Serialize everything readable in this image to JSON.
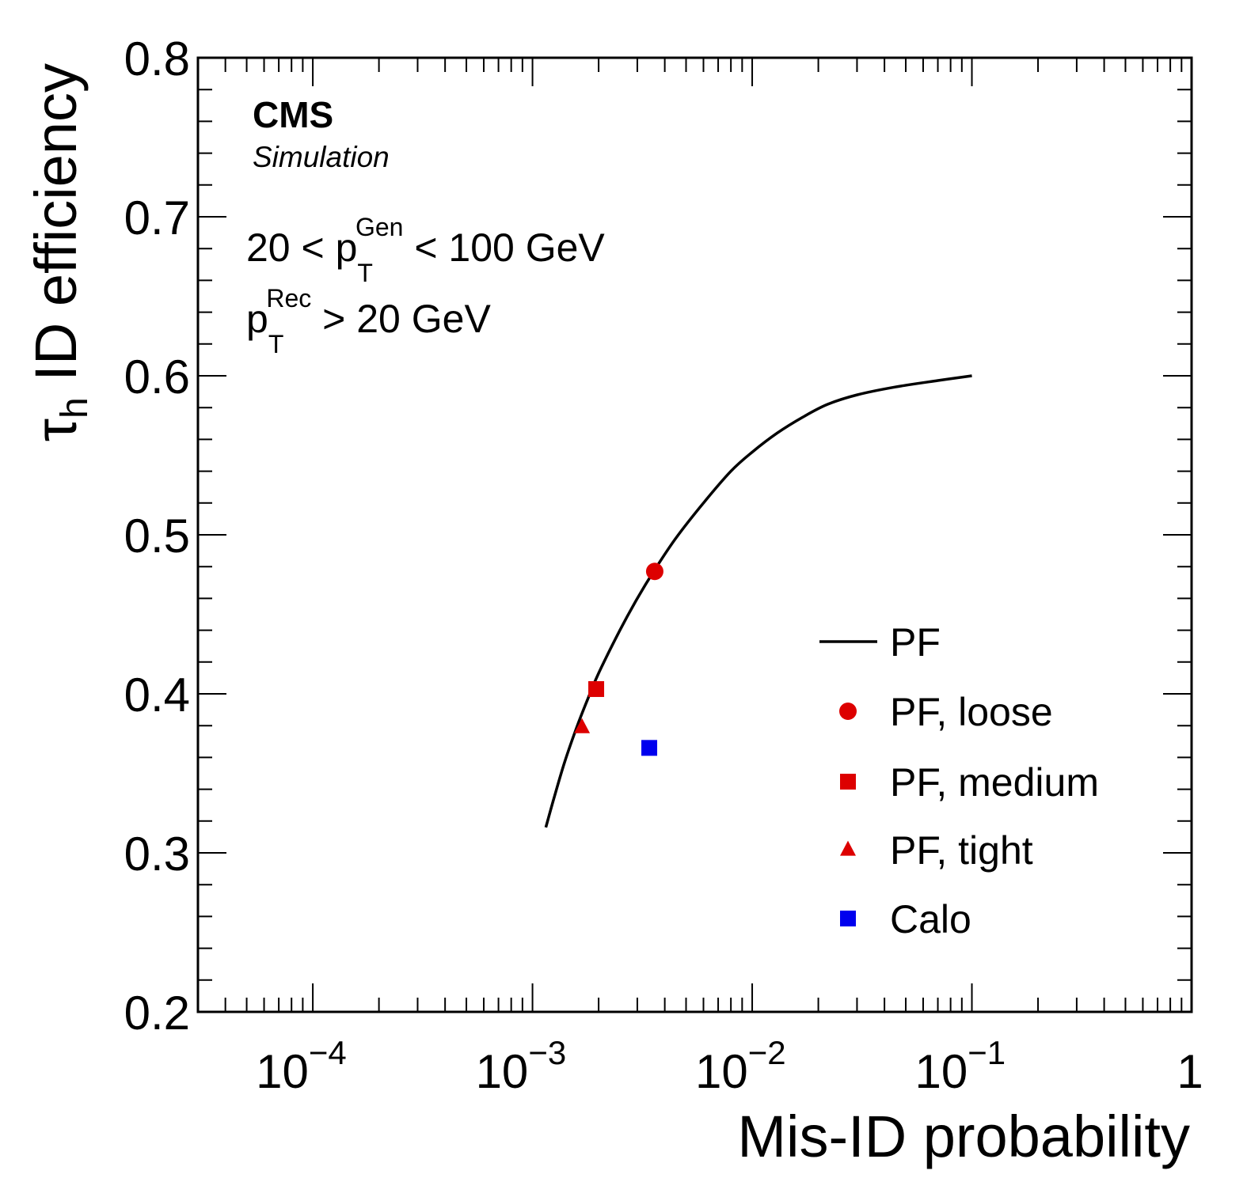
{
  "chart_data": {
    "type": "scatter",
    "xlabel": "Mis-ID probability",
    "ylabel_main": "τ",
    "ylabel_sub": "h",
    "ylabel_rest": " ID efficiency",
    "xscale": "log",
    "xlim": [
      3e-05,
      1
    ],
    "ylim": [
      0.2,
      0.8
    ],
    "y_ticks": [
      0.2,
      0.3,
      0.4,
      0.5,
      0.6,
      0.7,
      0.8
    ],
    "y_tick_labels": [
      "0.2",
      "0.3",
      "0.4",
      "0.5",
      "0.6",
      "0.7",
      "0.8"
    ],
    "x_ticks": [
      {
        "value": 0.0001,
        "base": "10",
        "exp": "−4"
      },
      {
        "value": 0.001,
        "base": "10",
        "exp": "−3"
      },
      {
        "value": 0.01,
        "base": "10",
        "exp": "−2"
      },
      {
        "value": 0.1,
        "base": "10",
        "exp": "−1"
      },
      {
        "value": 1,
        "base": "1",
        "exp": ""
      }
    ],
    "annotations": {
      "experiment": "CMS",
      "status": "Simulation",
      "cut1": {
        "pre": "20 < p",
        "sub": "T",
        "sup": "Gen",
        "post": " < 100 GeV"
      },
      "cut2": {
        "pre": "p",
        "sub": "T",
        "sup": "Rec",
        "post": " > 20 GeV"
      }
    },
    "legend_position": "bottom-right",
    "series": [
      {
        "name": "PF",
        "kind": "line",
        "color": "#000000",
        "points": [
          [
            0.00115,
            0.316
          ],
          [
            0.00125,
            0.334
          ],
          [
            0.0014,
            0.357
          ],
          [
            0.0016,
            0.38
          ],
          [
            0.0018,
            0.398
          ],
          [
            0.002,
            0.413
          ],
          [
            0.0025,
            0.44
          ],
          [
            0.003,
            0.46
          ],
          [
            0.0036,
            0.478
          ],
          [
            0.0045,
            0.498
          ],
          [
            0.006,
            0.52
          ],
          [
            0.008,
            0.54
          ],
          [
            0.01,
            0.552
          ],
          [
            0.013,
            0.564
          ],
          [
            0.017,
            0.574
          ],
          [
            0.022,
            0.582
          ],
          [
            0.03,
            0.588
          ],
          [
            0.045,
            0.593
          ],
          [
            0.07,
            0.597
          ],
          [
            0.1,
            0.6
          ]
        ]
      },
      {
        "name": "PF, loose",
        "kind": "point",
        "marker": "circle",
        "color": "#dd0000",
        "points": [
          [
            0.0036,
            0.477
          ]
        ]
      },
      {
        "name": "PF, medium",
        "kind": "point",
        "marker": "square",
        "color": "#dd0000",
        "points": [
          [
            0.00195,
            0.403
          ]
        ]
      },
      {
        "name": "PF, tight",
        "kind": "point",
        "marker": "triangle",
        "color": "#dd0000",
        "points": [
          [
            0.00168,
            0.379
          ]
        ]
      },
      {
        "name": "Calo",
        "kind": "point",
        "marker": "square",
        "color": "#0000ee",
        "points": [
          [
            0.0034,
            0.366
          ]
        ]
      }
    ]
  }
}
